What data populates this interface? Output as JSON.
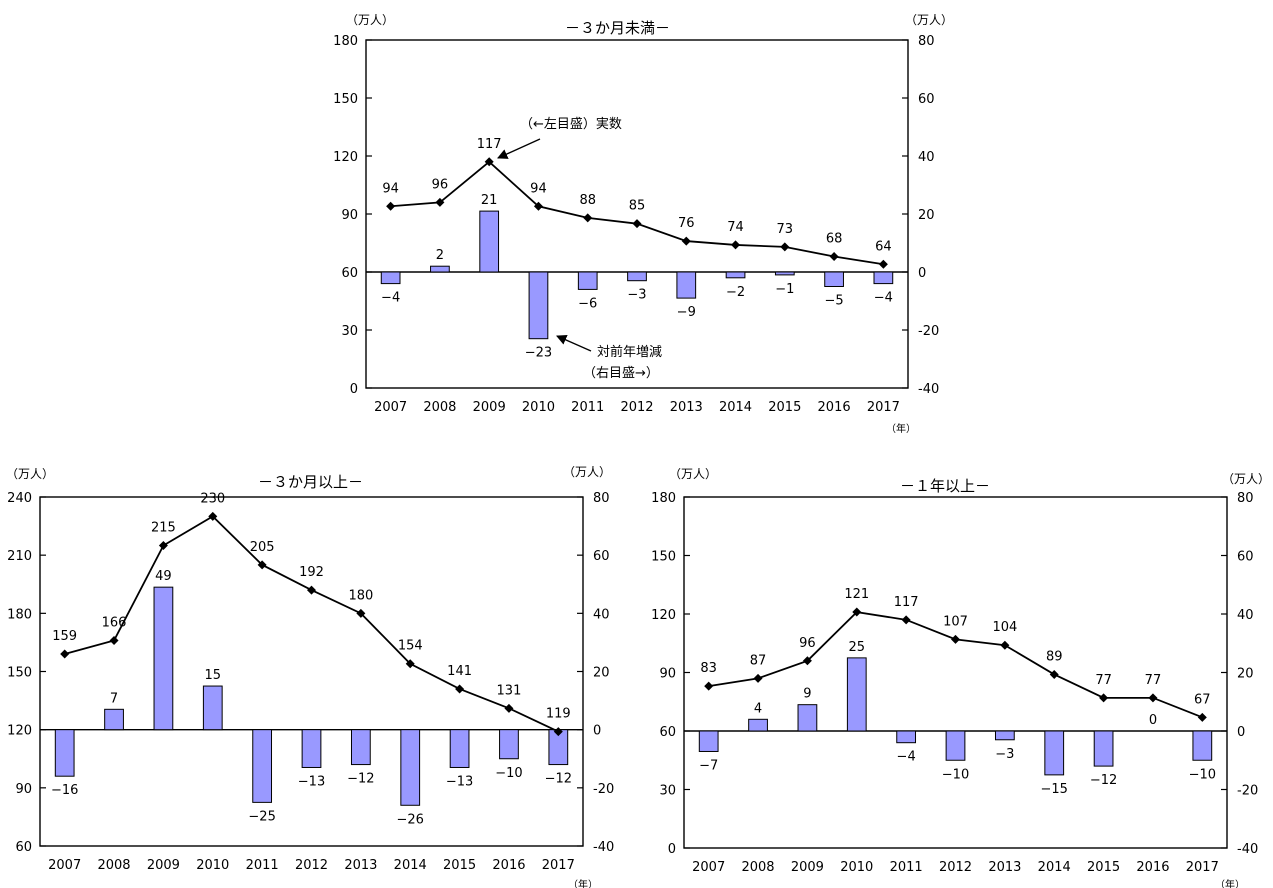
{
  "chart_data": [
    {
      "id": "short",
      "type": "bar+line",
      "title": "－３か月未満－",
      "left_unit": "（万人）",
      "right_unit": "（万人）",
      "year_unit": "（年）",
      "categories": [
        "2007",
        "2008",
        "2009",
        "2010",
        "2011",
        "2012",
        "2013",
        "2014",
        "2015",
        "2016",
        "2017"
      ],
      "left_axis": {
        "min": 0,
        "max": 180,
        "step": 30,
        "ticks": [
          "0",
          "30",
          "60",
          "90",
          "120",
          "150",
          "180"
        ]
      },
      "right_axis": {
        "min": -40,
        "max": 80,
        "step": 20,
        "ticks": [
          "-40",
          "-20",
          "0",
          "20",
          "40",
          "60",
          "80"
        ]
      },
      "series": [
        {
          "name": "実数",
          "axis": "left",
          "type": "line",
          "values": [
            94,
            96,
            117,
            94,
            88,
            85,
            76,
            74,
            73,
            68,
            64
          ]
        },
        {
          "name": "対前年増減",
          "axis": "right",
          "type": "bar",
          "values": [
            -4,
            2,
            21,
            -23,
            -6,
            -3,
            -9,
            -2,
            -1,
            -5,
            -4
          ]
        }
      ],
      "bar_labels": [
        "−4",
        "2",
        "21",
        "−23",
        "−6",
        "−3",
        "−9",
        "−2",
        "−1",
        "−5",
        "−4"
      ],
      "annotations": [
        "（←左目盛）実数",
        "対前年増減",
        "（右目盛→）"
      ]
    },
    {
      "id": "three_plus",
      "type": "bar+line",
      "title": "－３か月以上－",
      "left_unit": "（万人）",
      "right_unit": "（万人）",
      "year_unit": "（年）",
      "categories": [
        "2007",
        "2008",
        "2009",
        "2010",
        "2011",
        "2012",
        "2013",
        "2014",
        "2015",
        "2016",
        "2017"
      ],
      "left_axis": {
        "min": 60,
        "max": 240,
        "step": 30,
        "ticks": [
          "60",
          "90",
          "120",
          "150",
          "180",
          "210",
          "240"
        ]
      },
      "right_axis": {
        "min": -40,
        "max": 80,
        "step": 20,
        "ticks": [
          "-40",
          "-20",
          "0",
          "20",
          "40",
          "60",
          "80"
        ]
      },
      "series": [
        {
          "name": "実数",
          "axis": "left",
          "type": "line",
          "values": [
            159,
            166,
            215,
            230,
            205,
            192,
            180,
            154,
            141,
            131,
            119
          ]
        },
        {
          "name": "対前年増減",
          "axis": "right",
          "type": "bar",
          "values": [
            -16,
            7,
            49,
            15,
            -25,
            -13,
            -12,
            -26,
            -13,
            -10,
            -12
          ]
        }
      ],
      "bar_labels": [
        "−16",
        "7",
        "49",
        "15",
        "−25",
        "−13",
        "−12",
        "−26",
        "−13",
        "−10",
        "−12"
      ],
      "annotations": []
    },
    {
      "id": "one_year_plus",
      "type": "bar+line",
      "title": "－１年以上－",
      "left_unit": "（万人）",
      "right_unit": "（万人）",
      "year_unit": "（年）",
      "categories": [
        "2007",
        "2008",
        "2009",
        "2010",
        "2011",
        "2012",
        "2013",
        "2014",
        "2015",
        "2016",
        "2017"
      ],
      "left_axis": {
        "min": 0,
        "max": 180,
        "step": 30,
        "ticks": [
          "0",
          "30",
          "60",
          "90",
          "120",
          "150",
          "180"
        ]
      },
      "right_axis": {
        "min": -40,
        "max": 80,
        "step": 20,
        "ticks": [
          "-40",
          "-20",
          "0",
          "20",
          "40",
          "60",
          "80"
        ]
      },
      "series": [
        {
          "name": "実数",
          "axis": "left",
          "type": "line",
          "values": [
            83,
            87,
            96,
            121,
            117,
            107,
            104,
            89,
            77,
            77,
            67
          ]
        },
        {
          "name": "対前年増減",
          "axis": "right",
          "type": "bar",
          "values": [
            -7,
            4,
            9,
            25,
            -4,
            -10,
            -3,
            -15,
            -12,
            0,
            -10
          ]
        }
      ],
      "bar_labels": [
        "−7",
        "4",
        "9",
        "25",
        "−4",
        "−10",
        "−3",
        "−15",
        "−12",
        "0",
        "−10"
      ],
      "annotations": []
    }
  ]
}
